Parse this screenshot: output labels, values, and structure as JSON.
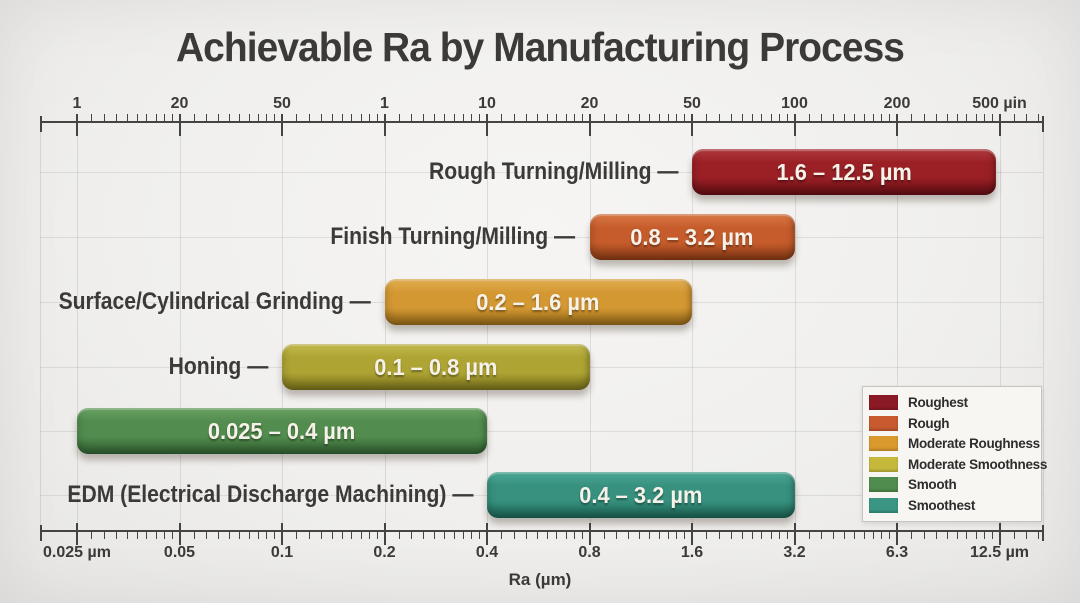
{
  "title": "Achievable Ra by Manufacturing Process",
  "chart_data": {
    "type": "bar",
    "subtype": "horizontal-range-bars",
    "x_scale": "log2",
    "x_range_um": [
      0.025,
      12.5
    ],
    "xlabel": "Ra (µm)",
    "grid": true,
    "legend_position": "bottom-right",
    "top_axis": {
      "unit": "µin",
      "tick_labels": [
        "1",
        "20",
        "50",
        "1",
        "10",
        "20",
        "50",
        "100",
        "200",
        "500 µin"
      ]
    },
    "bottom_axis": {
      "unit": "µm",
      "tick_labels": [
        "0.025 µm",
        "0.05",
        "0.1",
        "0.2",
        "0.4",
        "0.8",
        "1.6",
        "3.2",
        "6.3",
        "12.5 µm"
      ],
      "tick_values": [
        0.025,
        0.05,
        0.1,
        0.2,
        0.4,
        0.8,
        1.6,
        3.2,
        6.3,
        12.5
      ]
    },
    "series": [
      {
        "process": "Rough Turning/Milling",
        "label": "Rough Turning/Milling —",
        "min_um": 1.6,
        "max_um": 12.5,
        "range_label": "1.6 – 12.5 µm",
        "category": "Roughest",
        "color": "#9a2026",
        "color_dark": "#6e1016",
        "color_light": "#b03a3e"
      },
      {
        "process": "Finish Turning/Milling",
        "label": "Finish Turning/Milling —",
        "min_um": 0.8,
        "max_um": 3.2,
        "range_label": "0.8 – 3.2 µm",
        "category": "Rough",
        "color": "#c65c2c",
        "color_dark": "#954017",
        "color_light": "#da7845"
      },
      {
        "process": "Surface/Cylindrical Grinding",
        "label": "Surface/Cylindrical Grinding —",
        "min_um": 0.2,
        "max_um": 1.6,
        "range_label": "0.2 – 1.6 µm",
        "category": "Moderate Roughness",
        "color": "#d49833",
        "color_dark": "#a3731a",
        "color_light": "#e3ae50"
      },
      {
        "process": "Honing",
        "label": "Honing —",
        "min_um": 0.1,
        "max_um": 0.8,
        "range_label": "0.1 – 0.8 µm",
        "category": "Moderate Smoothness",
        "color": "#aea434",
        "color_dark": "#847c1e",
        "color_light": "#c3ba4f"
      },
      {
        "process": "",
        "label": "",
        "min_um": 0.025,
        "max_um": 0.4,
        "range_label": "0.025 – 0.4 µm",
        "category": "Smooth",
        "color": "#528c4e",
        "color_dark": "#356a36",
        "color_light": "#69a263"
      },
      {
        "process": "EDM (Electrical Discharge Machining)",
        "label": "EDM (Electrical Discharge Machining) —",
        "min_um": 0.4,
        "max_um": 3.2,
        "range_label": "0.4 – 3.2 µm",
        "category": "Smoothest",
        "color": "#37917e",
        "color_dark": "#1f6d5c",
        "color_light": "#4da795"
      }
    ],
    "legend": [
      {
        "label": "Roughest",
        "color": "#8c1a24"
      },
      {
        "label": "Rough",
        "color": "#c75a2e"
      },
      {
        "label": "Moderate Roughness",
        "color": "#d9992d"
      },
      {
        "label": "Moderate Smoothness",
        "color": "#c5b83b"
      },
      {
        "label": "Smooth",
        "color": "#4f8c4d"
      },
      {
        "label": "Smoothest",
        "color": "#3a9682"
      }
    ]
  }
}
